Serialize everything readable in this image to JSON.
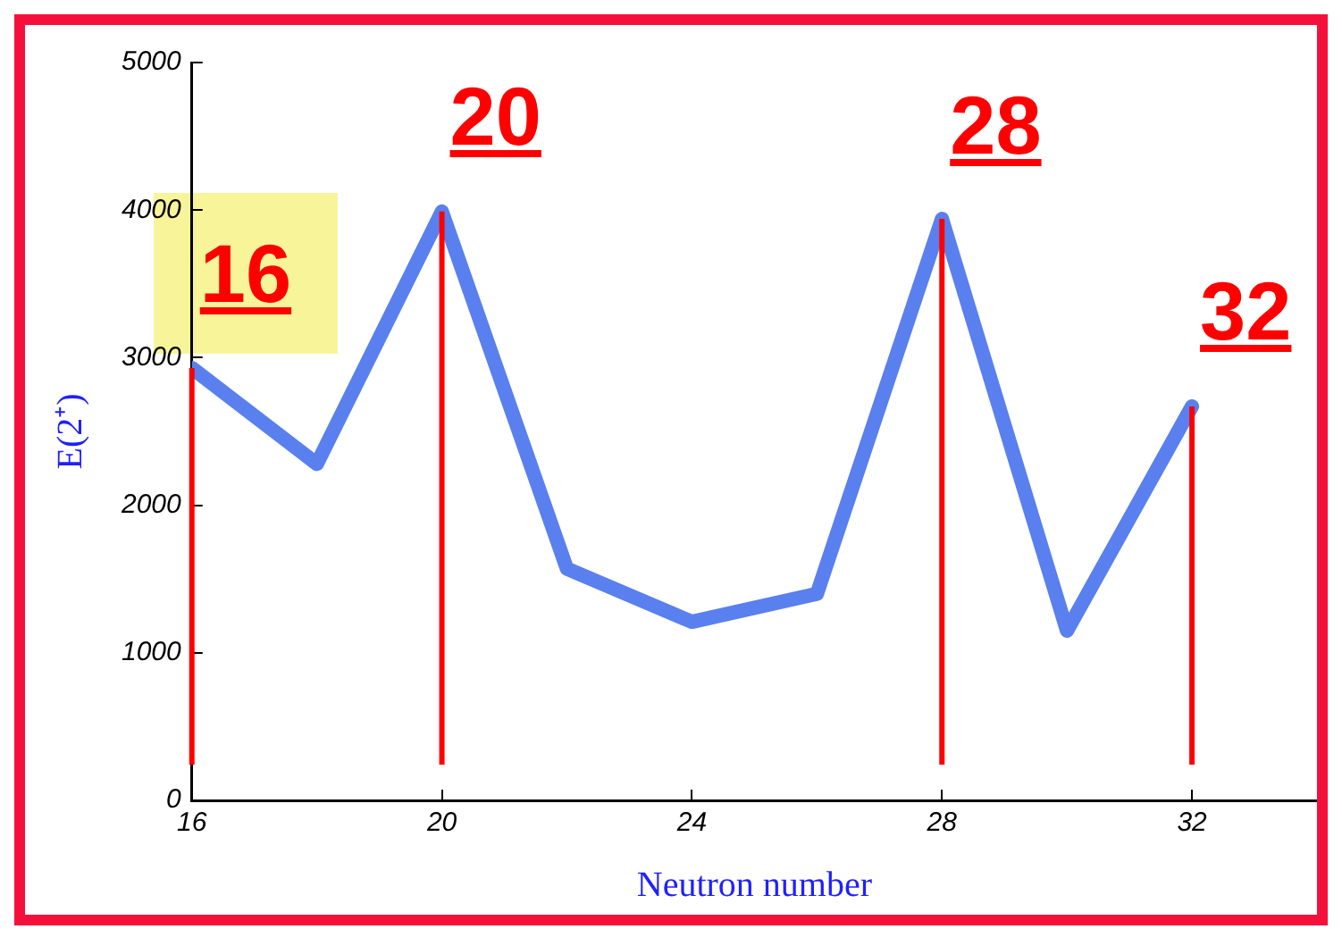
{
  "chart_data": {
    "type": "line",
    "xlabel": "Neutron number",
    "ylabel": "E(2⁺)",
    "x": [
      16,
      18,
      20,
      22,
      24,
      26,
      28,
      30,
      32
    ],
    "series": [
      {
        "color": "#5a80ef",
        "values": [
          2930,
          2280,
          3990,
          1570,
          1210,
          1400,
          3940,
          1150,
          2670
        ]
      }
    ],
    "xlim": [
      16,
      34
    ],
    "xticks": [
      16,
      20,
      24,
      28,
      32
    ],
    "ylim": [
      0,
      5000
    ],
    "yticks": [
      0,
      1000,
      2000,
      3000,
      4000,
      5000
    ],
    "grid": false,
    "legend": false,
    "marker": "none",
    "line_style": "solid",
    "ref_lines": [
      {
        "axis": "x",
        "value": 16,
        "label": "16",
        "color": "#ff0000"
      },
      {
        "axis": "x",
        "value": 20,
        "label": "20",
        "color": "#ff0000"
      },
      {
        "axis": "x",
        "value": 28,
        "label": "28",
        "color": "#ff0000"
      },
      {
        "axis": "x",
        "value": 32,
        "label": "32",
        "color": "#ff0000"
      }
    ]
  }
}
